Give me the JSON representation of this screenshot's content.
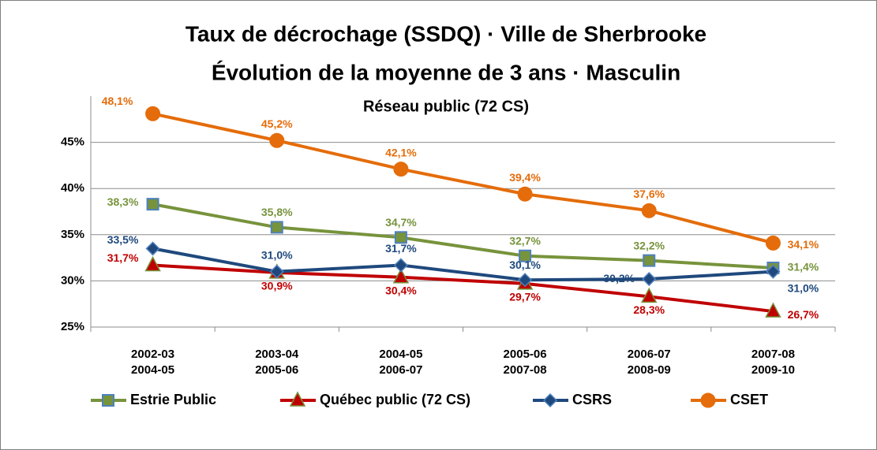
{
  "chart_data": {
    "type": "line",
    "title": [
      "Taux de décrochage (SSDQ) · Ville de Sherbrooke",
      "Évolution de la moyenne de 3 ans · Masculin"
    ],
    "subtitle": "Réseau public (72 CS)",
    "categories": [
      [
        "2002-03",
        "2004-05"
      ],
      [
        "2003-04",
        "2005-06"
      ],
      [
        "2004-05",
        "2006-07"
      ],
      [
        "2005-06",
        "2007-08"
      ],
      [
        "2006-07",
        "2008-09"
      ],
      [
        "2007-08",
        "2009-10"
      ]
    ],
    "ylim": [
      25,
      50
    ],
    "yticks": [
      {
        "value": 25,
        "label": "25%"
      },
      {
        "value": 30,
        "label": "30%"
      },
      {
        "value": 35,
        "label": "35%"
      },
      {
        "value": 40,
        "label": "40%"
      },
      {
        "value": 45,
        "label": "45%"
      }
    ],
    "grid": true,
    "legend": "bottom",
    "series": [
      {
        "name": "Estrie Public",
        "color": "#77933c",
        "marker": "square",
        "values": [
          38.3,
          35.8,
          34.7,
          32.7,
          32.2,
          31.4
        ],
        "value_labels": [
          "38,3%",
          "35,8%",
          "34,7%",
          "32,7%",
          "32,2%",
          "31,4%"
        ]
      },
      {
        "name": "Québec public (72 CS)",
        "color": "#c00000",
        "marker": "triangle",
        "values": [
          31.7,
          30.9,
          30.4,
          29.7,
          28.3,
          26.7
        ],
        "value_labels": [
          "31,7%",
          "30,9%",
          "30,4%",
          "29,7%",
          "28,3%",
          "26,7%"
        ]
      },
      {
        "name": "CSRS",
        "color": "#1f497d",
        "marker": "diamond",
        "values": [
          33.5,
          31.0,
          31.7,
          30.1,
          30.2,
          31.0
        ],
        "value_labels": [
          "33,5%",
          "31,0%",
          "31,7%",
          "30,1%",
          "30,2%",
          "31,0%"
        ]
      },
      {
        "name": "CSET",
        "color": "#e46c0a",
        "marker": "circle",
        "values": [
          48.1,
          45.2,
          42.1,
          39.4,
          37.6,
          34.1
        ],
        "value_labels": [
          "48,1%",
          "45,2%",
          "42,1%",
          "39,4%",
          "37,6%",
          "34,1%"
        ]
      }
    ]
  }
}
